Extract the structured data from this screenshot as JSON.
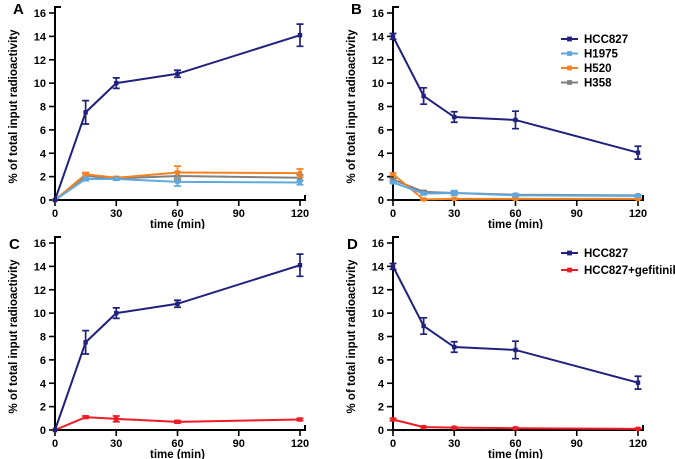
{
  "figure": {
    "background": "#ffffff",
    "axis_color": "#000000",
    "text_color": "#000000"
  },
  "palette": {
    "HCC827": "#20207d",
    "H1975": "#5fa8e0",
    "H520": "#f58220",
    "H358": "#808080",
    "HCC827+gefitinib": "#ec1c24"
  },
  "chart_data": [
    {
      "panel": "A",
      "type": "line",
      "xlabel": "time (min)",
      "ylabel": "% of total input radioactivity",
      "xlim": [
        0,
        120
      ],
      "ylim": [
        0,
        16
      ],
      "xticks": [
        0,
        30,
        60,
        90,
        120
      ],
      "yticks": [
        0,
        2,
        4,
        6,
        8,
        10,
        12,
        14,
        16
      ],
      "x": [
        0,
        15,
        30,
        60,
        120
      ],
      "grid": false,
      "legend": null,
      "series": [
        {
          "name": "HCC827",
          "color": "#20207d",
          "values": [
            0,
            7.5,
            10.0,
            10.8,
            14.1
          ],
          "err": [
            0,
            1.0,
            0.45,
            0.3,
            0.95
          ]
        },
        {
          "name": "H1975",
          "color": "#5fa8e0",
          "values": [
            0,
            1.8,
            1.8,
            1.55,
            1.5
          ],
          "err": [
            0,
            0.15,
            0.1,
            0.35,
            0.2
          ]
        },
        {
          "name": "H520",
          "color": "#f58220",
          "values": [
            0,
            2.2,
            1.9,
            2.35,
            2.3
          ],
          "err": [
            0,
            0.15,
            0.1,
            0.55,
            0.35
          ]
        },
        {
          "name": "H358",
          "color": "#808080",
          "values": [
            0,
            2.05,
            1.85,
            2.05,
            1.9
          ],
          "err": [
            0,
            0.2,
            0.1,
            0.35,
            0.25
          ]
        }
      ]
    },
    {
      "panel": "B",
      "type": "line",
      "xlabel": "time (min)",
      "ylabel": "% of total input radioactivity",
      "xlim": [
        0,
        120
      ],
      "ylim": [
        0,
        16
      ],
      "xticks": [
        0,
        30,
        60,
        90,
        120
      ],
      "yticks": [
        0,
        2,
        4,
        6,
        8,
        10,
        12,
        14,
        16
      ],
      "x": [
        0,
        15,
        30,
        60,
        120
      ],
      "grid": false,
      "legend": [
        "HCC827",
        "H1975",
        "H520",
        "H358"
      ],
      "legend_pos": {
        "x": 223,
        "y": 39,
        "dy": 14.5
      },
      "series": [
        {
          "name": "HCC827",
          "color": "#20207d",
          "values": [
            14.0,
            8.9,
            7.1,
            6.85,
            4.05
          ],
          "err": [
            0.25,
            0.7,
            0.45,
            0.75,
            0.55
          ]
        },
        {
          "name": "H1975",
          "color": "#5fa8e0",
          "values": [
            1.5,
            0.55,
            0.6,
            0.4,
            0.35
          ],
          "err": [
            0.05,
            0.1,
            0.2,
            0.1,
            0.1
          ]
        },
        {
          "name": "H520",
          "color": "#f58220",
          "values": [
            2.2,
            0.05,
            0.1,
            0.1,
            0.1
          ],
          "err": [
            0.1,
            0.05,
            0.05,
            0.05,
            0.05
          ]
        },
        {
          "name": "H358",
          "color": "#808080",
          "values": [
            1.75,
            0.7,
            0.6,
            0.45,
            0.4
          ],
          "err": [
            0.1,
            0.1,
            0.1,
            0.05,
            0.05
          ]
        }
      ]
    },
    {
      "panel": "C",
      "type": "line",
      "xlabel": "time (min)",
      "ylabel": "% of total input radioactivity",
      "xlim": [
        0,
        120
      ],
      "ylim": [
        0,
        16
      ],
      "xticks": [
        0,
        30,
        60,
        90,
        120
      ],
      "yticks": [
        0,
        2,
        4,
        6,
        8,
        10,
        12,
        14,
        16
      ],
      "x": [
        0,
        15,
        30,
        60,
        120
      ],
      "grid": false,
      "legend": null,
      "series": [
        {
          "name": "HCC827",
          "color": "#20207d",
          "values": [
            0,
            7.5,
            10.0,
            10.8,
            14.1
          ],
          "err": [
            0,
            1.0,
            0.45,
            0.3,
            0.95
          ]
        },
        {
          "name": "HCC827+gefitinib",
          "color": "#ec1c24",
          "values": [
            0,
            1.1,
            0.95,
            0.7,
            0.9
          ],
          "err": [
            0,
            0.1,
            0.25,
            0.1,
            0.1
          ]
        }
      ]
    },
    {
      "panel": "D",
      "type": "line",
      "xlabel": "time (min)",
      "ylabel": "% of total input radioactivity",
      "xlim": [
        0,
        120
      ],
      "ylim": [
        0,
        16
      ],
      "xticks": [
        0,
        30,
        60,
        90,
        120
      ],
      "yticks": [
        0,
        2,
        4,
        6,
        8,
        10,
        12,
        14,
        16
      ],
      "x": [
        0,
        15,
        30,
        60,
        120
      ],
      "grid": false,
      "legend": [
        "HCC827",
        "HCC827+gefitinib"
      ],
      "legend_pos": {
        "x": 223,
        "y": 23,
        "dy": 17
      },
      "series": [
        {
          "name": "HCC827",
          "color": "#20207d",
          "values": [
            14.0,
            8.9,
            7.1,
            6.85,
            4.05
          ],
          "err": [
            0.25,
            0.7,
            0.45,
            0.75,
            0.55
          ]
        },
        {
          "name": "HCC827+gefitinib",
          "color": "#ec1c24",
          "values": [
            0.9,
            0.25,
            0.2,
            0.15,
            0.1
          ],
          "err": [
            0.1,
            0.05,
            0.05,
            0.05,
            0.05
          ]
        }
      ]
    }
  ]
}
